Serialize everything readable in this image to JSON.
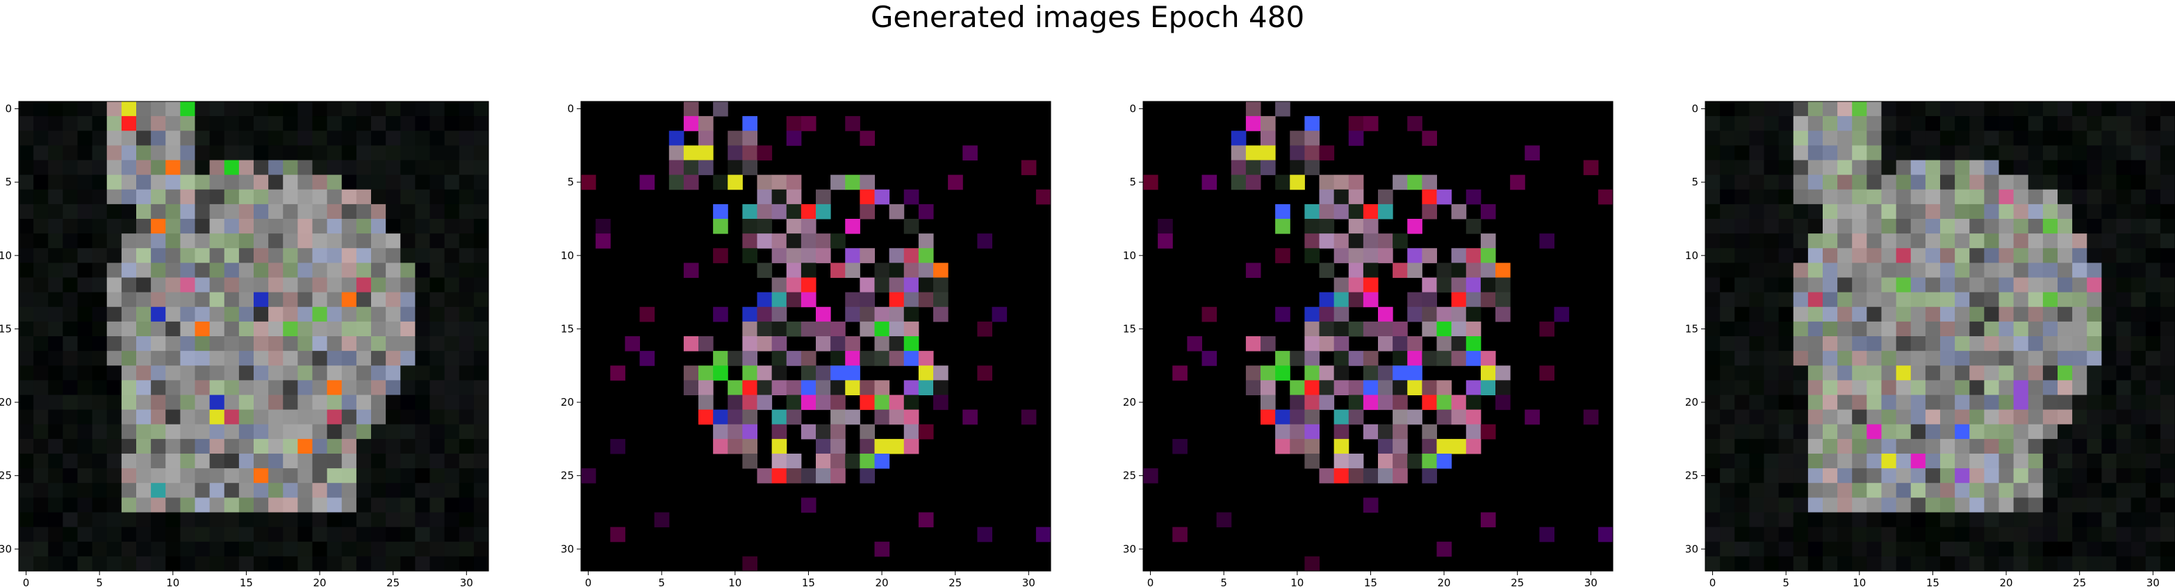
{
  "title": "Generated images Epoch 480",
  "chart_data": [
    {
      "type": "heatmap",
      "image_size": 32,
      "style": "dense",
      "seed": 11,
      "x_ticks": [
        "0",
        "5",
        "10",
        "15",
        "20",
        "25",
        "30"
      ],
      "y_ticks": [
        "0",
        "5",
        "10",
        "15",
        "20",
        "25",
        "30"
      ],
      "xlim": [
        -0.5,
        31.5
      ],
      "ylim": [
        31.5,
        -0.5
      ],
      "background": "#000000"
    },
    {
      "type": "heatmap",
      "image_size": 32,
      "style": "sparse",
      "seed": 23,
      "x_ticks": [
        "0",
        "5",
        "10",
        "15",
        "20",
        "25",
        "30"
      ],
      "y_ticks": [
        "0",
        "5",
        "10",
        "15",
        "20",
        "25",
        "30"
      ],
      "xlim": [
        -0.5,
        31.5
      ],
      "ylim": [
        31.5,
        -0.5
      ],
      "background": "#000000"
    },
    {
      "type": "heatmap",
      "image_size": 32,
      "style": "sparse",
      "seed": 23,
      "x_ticks": [
        "0",
        "5",
        "10",
        "15",
        "20",
        "25",
        "30"
      ],
      "y_ticks": [
        "0",
        "5",
        "10",
        "15",
        "20",
        "25",
        "30"
      ],
      "xlim": [
        -0.5,
        31.5
      ],
      "ylim": [
        31.5,
        -0.5
      ],
      "background": "#000000"
    },
    {
      "type": "heatmap",
      "image_size": 32,
      "style": "dense",
      "seed": 37,
      "x_ticks": [
        "0",
        "5",
        "10",
        "15",
        "20",
        "25",
        "30"
      ],
      "y_ticks": [
        "0",
        "5",
        "10",
        "15",
        "20",
        "25",
        "30"
      ],
      "xlim": [
        -0.5,
        31.5
      ],
      "ylim": [
        31.5,
        -0.5
      ],
      "background": "#000000"
    }
  ]
}
